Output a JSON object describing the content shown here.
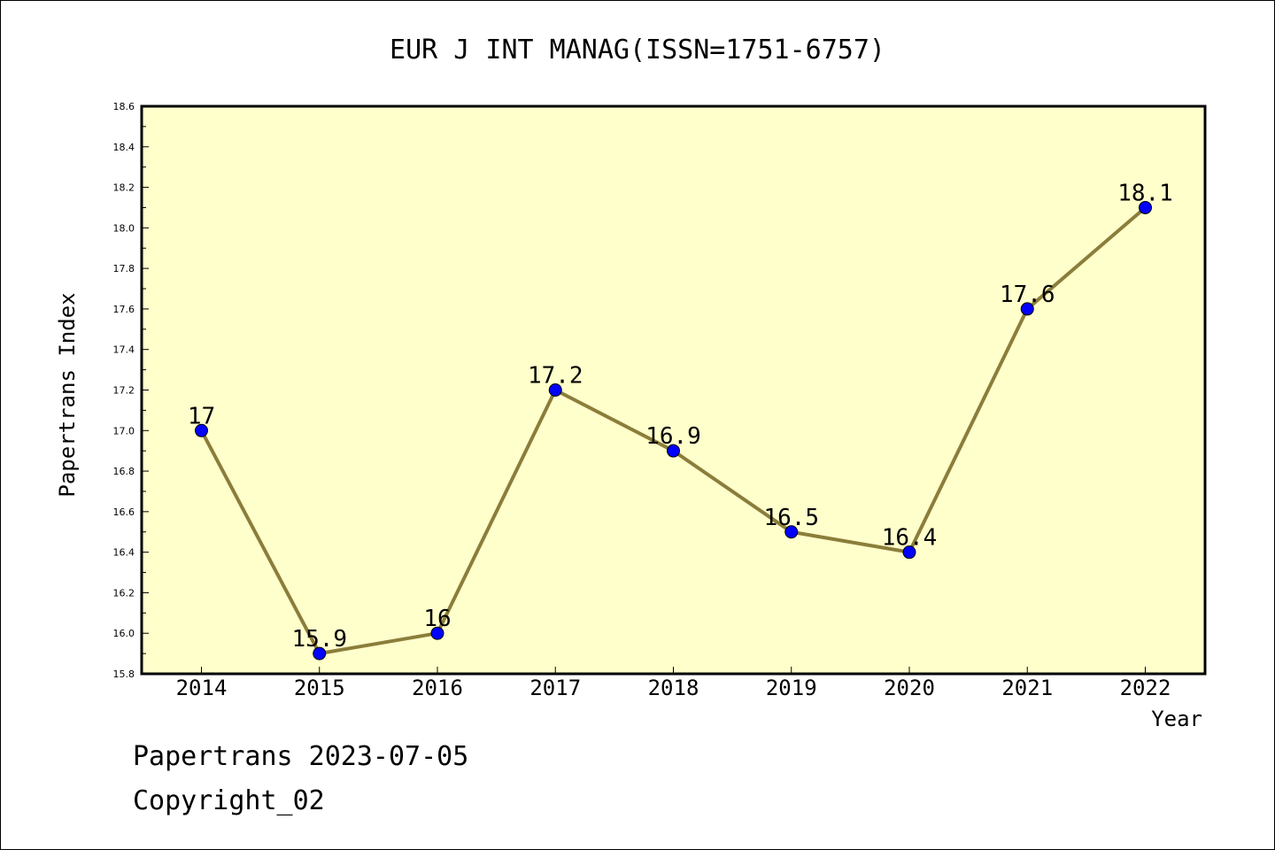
{
  "footer": {
    "line1": "Papertrans 2023-07-05",
    "line2": "Copyright_02"
  },
  "colors": {
    "plot_background": "#ffffcc",
    "line": "#8b7d3a",
    "marker": "#0000ff",
    "axis": "#000000"
  },
  "chart_data": {
    "type": "line",
    "title": "EUR J INT MANAG(ISSN=1751-6757)",
    "xlabel": "Year",
    "ylabel": "Papertrans Index",
    "ylim": [
      15.8,
      18.6
    ],
    "y_major_ticks": [
      "15.8",
      "16.0",
      "16.2",
      "16.4",
      "16.6",
      "16.8",
      "17.0",
      "17.2",
      "17.4",
      "17.6",
      "17.8",
      "18.0",
      "18.2",
      "18.4",
      "18.6"
    ],
    "categories": [
      "2014",
      "2015",
      "2016",
      "2017",
      "2018",
      "2019",
      "2020",
      "2021",
      "2022"
    ],
    "series": [
      {
        "values": [
          17,
          15.9,
          16,
          17.2,
          16.9,
          16.5,
          16.4,
          17.6,
          18.1
        ],
        "labels": [
          "17",
          "15.9",
          "16",
          "17.2",
          "16.9",
          "16.5",
          "16.4",
          "17.6",
          "18.1"
        ]
      }
    ],
    "grid": false,
    "legend": "none"
  }
}
